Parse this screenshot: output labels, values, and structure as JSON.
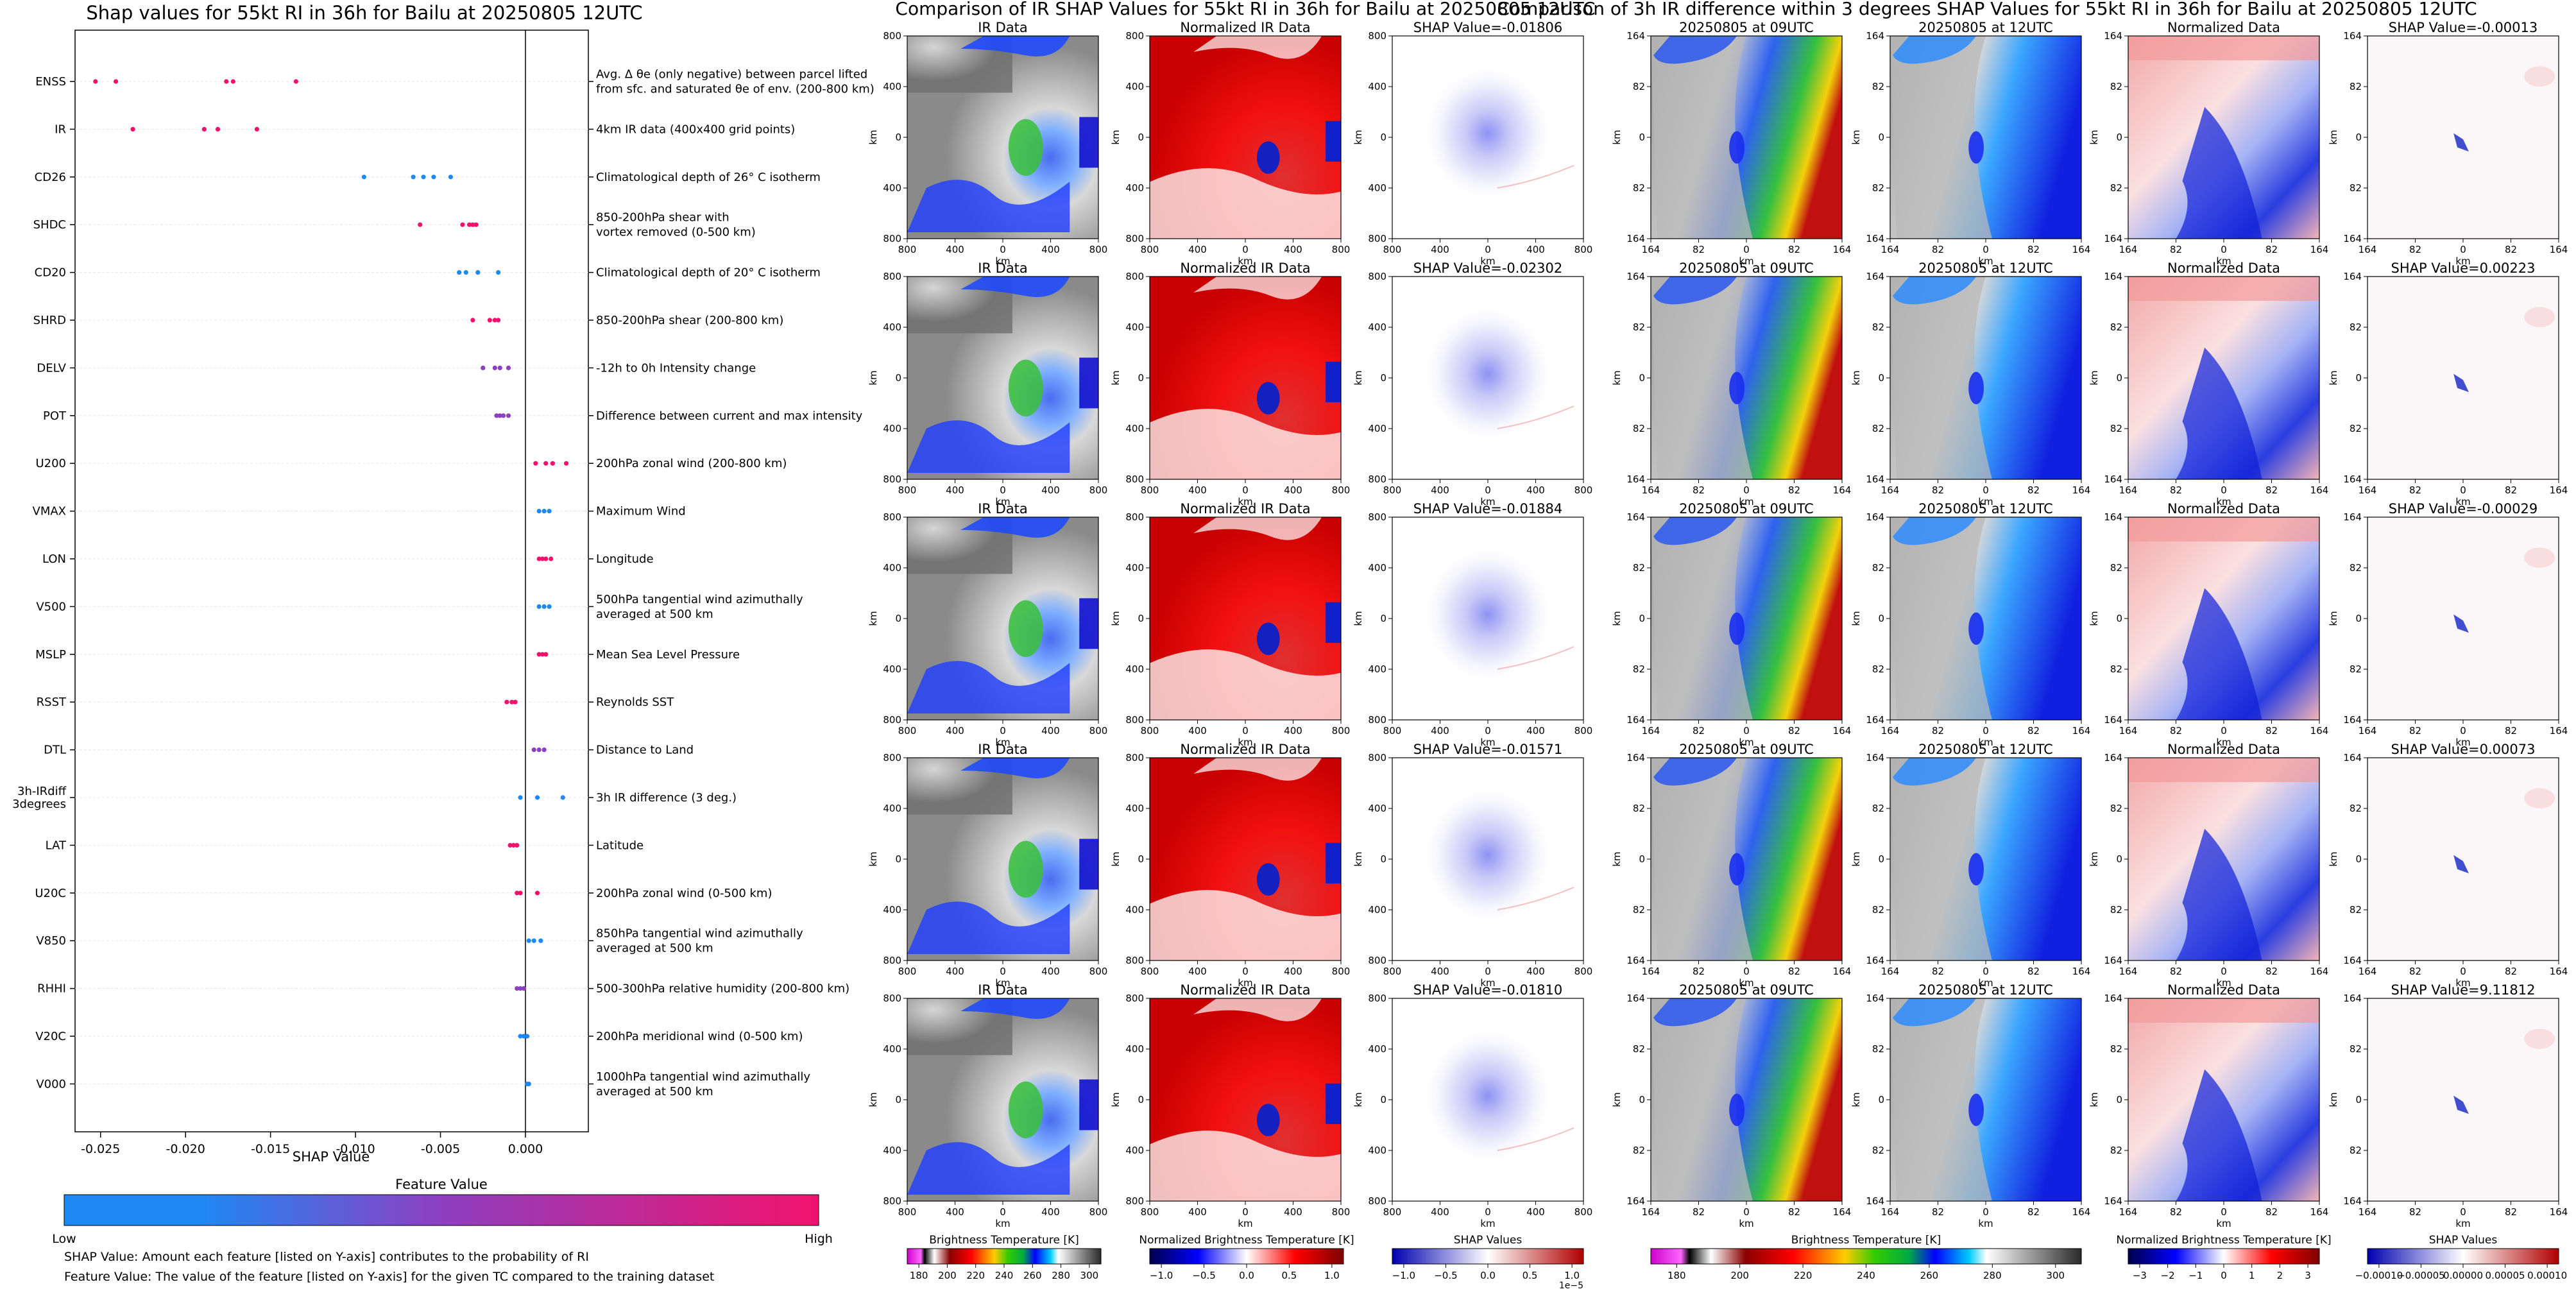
{
  "left": {
    "title": "Shap values for 55kt RI in 36h for Bailu at 20250805 12UTC",
    "xlabel": "SHAP Value",
    "colorbar_title": "Feature Value",
    "colorbar_low": "Low",
    "colorbar_high": "High",
    "note1": "SHAP Value: Amount each feature [listed on Y-axis] contributes to the probability of RI",
    "note2": "Feature Value: The value of the feature [listed on Y-axis] for the given TC compared to the training dataset"
  },
  "chart_data": [
    {
      "type": "scatter",
      "title": "Shap values for 55kt RI in 36h for Bailu at 20250805 12UTC",
      "xlabel": "SHAP Value",
      "xlim": [
        -0.0265,
        0.0037
      ],
      "xticks": [
        "-0.025",
        "-0.020",
        "-0.015",
        "-0.010",
        "-0.005",
        "0.000"
      ],
      "xtick_values": [
        -0.025,
        -0.02,
        -0.015,
        -0.01,
        -0.005,
        0.0
      ],
      "colors": {
        "low": "#1e88f5",
        "mid": "#8e3fc0",
        "high": "#f0126c"
      },
      "features": [
        {
          "code": "ENSS",
          "desc": [
            "Avg. Δ θe (only negative) between parcel lifted",
            "from sfc. and saturated θe of env. (200-800 km)"
          ],
          "color": "high",
          "values": [
            -0.0253,
            -0.0241,
            -0.0176,
            -0.0172,
            -0.0135
          ]
        },
        {
          "code": "IR",
          "desc": [
            "4km IR data (400x400 grid points)"
          ],
          "color": "high",
          "values": [
            -0.0231,
            -0.0189,
            -0.0181,
            -0.0158
          ]
        },
        {
          "code": "CD26",
          "desc": [
            "Climatological depth of 26° C isotherm"
          ],
          "color": "low",
          "values": [
            -0.0095,
            -0.0066,
            -0.006,
            -0.0054,
            -0.0044
          ]
        },
        {
          "code": "SHDC",
          "desc": [
            "850-200hPa shear with",
            "vortex removed (0-500 km)"
          ],
          "color": "high",
          "values": [
            -0.0062,
            -0.0037,
            -0.0033,
            -0.0031,
            -0.0029
          ]
        },
        {
          "code": "CD20",
          "desc": [
            "Climatological depth of 20° C isotherm"
          ],
          "color": "low",
          "values": [
            -0.0039,
            -0.0035,
            -0.0028,
            -0.0016
          ]
        },
        {
          "code": "SHRD",
          "desc": [
            "850-200hPa shear (200-800 km)"
          ],
          "color": "high",
          "values": [
            -0.0031,
            -0.0021,
            -0.0018,
            -0.0016
          ]
        },
        {
          "code": "DELV",
          "desc": [
            "-12h to 0h Intensity change"
          ],
          "color": "mid",
          "values": [
            -0.0025,
            -0.0018,
            -0.0015,
            -0.001
          ]
        },
        {
          "code": "POT",
          "desc": [
            "Difference between current and max intensity"
          ],
          "color": "mid",
          "values": [
            -0.0017,
            -0.0015,
            -0.0013,
            -0.001
          ]
        },
        {
          "code": "U200",
          "desc": [
            "200hPa zonal wind (200-800 km)"
          ],
          "color": "high",
          "values": [
            0.0006,
            0.0012,
            0.0016,
            0.0024
          ]
        },
        {
          "code": "VMAX",
          "desc": [
            "Maximum Wind"
          ],
          "color": "low",
          "values": [
            0.0008,
            0.0011,
            0.0014
          ]
        },
        {
          "code": "LON",
          "desc": [
            "Longitude"
          ],
          "color": "high",
          "values": [
            0.0008,
            0.001,
            0.0012,
            0.0015
          ]
        },
        {
          "code": "V500",
          "desc": [
            "500hPa tangential wind azimuthally",
            "averaged at 500 km"
          ],
          "color": "low",
          "values": [
            0.0008,
            0.0011,
            0.0014
          ]
        },
        {
          "code": "MSLP",
          "desc": [
            "Mean Sea Level Pressure"
          ],
          "color": "high",
          "values": [
            0.0008,
            0.001,
            0.0012
          ]
        },
        {
          "code": "RSST",
          "desc": [
            "Reynolds SST"
          ],
          "color": "high",
          "values": [
            -0.0011,
            -0.0008,
            -0.0006
          ]
        },
        {
          "code": "DTL",
          "desc": [
            "Distance to Land"
          ],
          "color": "mid",
          "values": [
            0.0005,
            0.0008,
            0.0011
          ]
        },
        {
          "code": "3h-IRdiff 3degrees",
          "desc": [
            "3h IR difference (3 deg.)"
          ],
          "color": "low",
          "values": [
            -0.0003,
            0.0007,
            0.0022
          ]
        },
        {
          "code": "LAT",
          "desc": [
            "Latitude"
          ],
          "color": "high",
          "values": [
            -0.0009,
            -0.0007,
            -0.0005
          ]
        },
        {
          "code": "U20C",
          "desc": [
            "200hPa zonal wind (0-500 km)"
          ],
          "color": "high",
          "values": [
            -0.0005,
            -0.0003,
            0.0007
          ]
        },
        {
          "code": "V850",
          "desc": [
            "850hPa tangential wind azimuthally",
            "averaged at 500 km"
          ],
          "color": "low",
          "values": [
            0.0002,
            0.0005,
            0.0009
          ]
        },
        {
          "code": "RHHI",
          "desc": [
            "500-300hPa relative humidity (200-800 km)"
          ],
          "color": "mid",
          "values": [
            -0.0005,
            -0.0003,
            -0.0001
          ]
        },
        {
          "code": "V20C",
          "desc": [
            "200hPa meridional wind (0-500 km)"
          ],
          "color": "low",
          "values": [
            -0.0003,
            -0.0001,
            0.0001
          ]
        },
        {
          "code": "V000",
          "desc": [
            "1000hPa tangential wind azimuthally",
            "averaged at 500 km"
          ],
          "color": "low",
          "values": [
            0.0001,
            0.0002
          ]
        }
      ]
    },
    {
      "type": "heatmap",
      "title": "Comparison of IR SHAP Values for 55kt RI in 36h for Bailu at 20250805 12UTC",
      "panel_titles": [
        "IR Data",
        "Normalized IR Data"
      ],
      "shap_titles": [
        "SHAP Value=-0.01806",
        "SHAP Value=-0.02302",
        "SHAP Value=-0.01884",
        "SHAP Value=-0.01571",
        "SHAP Value=-0.01810"
      ],
      "axis_label": "km",
      "x_ticks": [
        "800",
        "400",
        "0",
        "400",
        "800"
      ],
      "y_ticks": [
        "800",
        "400",
        "0",
        "400",
        "800"
      ],
      "colorbars": [
        {
          "label": "Brightness Temperature [K]",
          "ticks": [
            "180",
            "200",
            "220",
            "240",
            "260",
            "280",
            "300"
          ]
        },
        {
          "label": "Normalized Brightness Temperature [K]",
          "ticks": [
            "−1.0",
            "−0.5",
            "0.0",
            "0.5",
            "1.0"
          ]
        },
        {
          "label": "SHAP Values",
          "ticks": [
            "−1.0",
            "−0.5",
            "0.0",
            "0.5",
            "1.0"
          ],
          "scale": "1e−5"
        }
      ]
    },
    {
      "type": "heatmap",
      "title": "Comparison of 3h IR difference within 3 degrees SHAP Values for 55kt RI in 36h for Bailu at 20250805 12UTC",
      "panel_titles": [
        "20250805 at 09UTC",
        "20250805 at 12UTC",
        "Normalized Data"
      ],
      "shap_titles": [
        "SHAP Value=-0.00013",
        "SHAP Value=0.00223",
        "SHAP Value=-0.00029",
        "SHAP Value=0.00073",
        "SHAP Value=9.11812"
      ],
      "axis_label": "km",
      "x_ticks": [
        "164",
        "82",
        "0",
        "82",
        "164"
      ],
      "y_ticks": [
        "164",
        "82",
        "0",
        "82",
        "164"
      ],
      "colorbars": [
        {
          "label": "Brightness Temperature [K]",
          "ticks": [
            "180",
            "200",
            "220",
            "240",
            "260",
            "280",
            "300"
          ]
        },
        {
          "label": "Normalized Brightness Temperature [K]",
          "ticks": [
            "−3",
            "−2",
            "−1",
            "0",
            "1",
            "2",
            "3"
          ]
        },
        {
          "label": "SHAP Values",
          "ticks": [
            "−0.00010",
            "−0.00005",
            "0.00000",
            "0.00005",
            "0.00010"
          ]
        }
      ]
    }
  ]
}
